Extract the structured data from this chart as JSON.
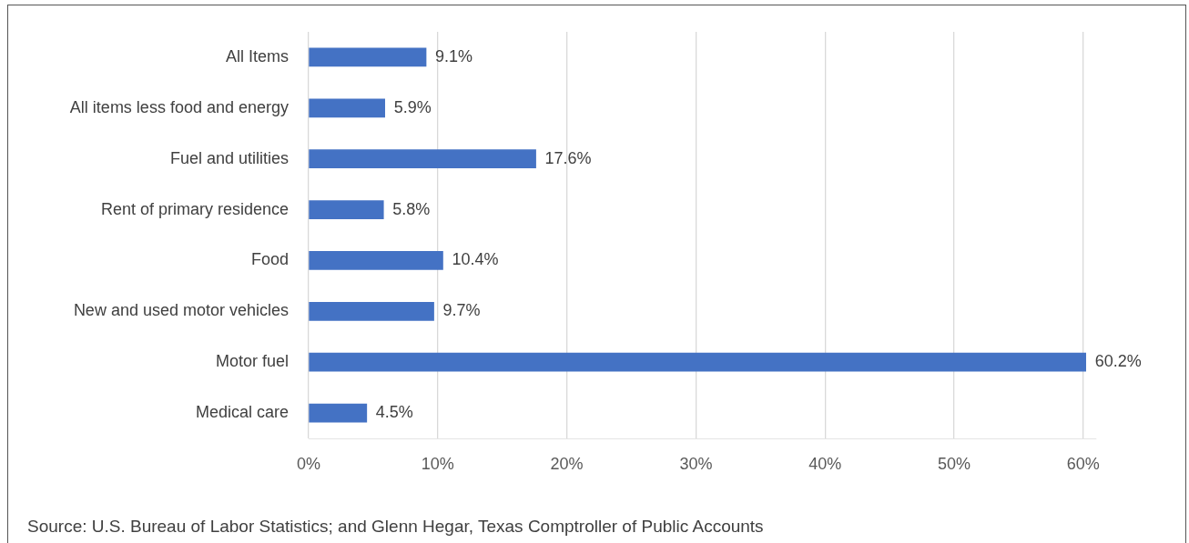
{
  "chart_data": {
    "type": "bar",
    "orientation": "horizontal",
    "categories": [
      "All Items",
      "All items less food and energy",
      "Fuel and utilities",
      "Rent of primary residence",
      "Food",
      "New and used motor vehicles",
      "Motor fuel",
      "Medical care"
    ],
    "values": [
      9.1,
      5.9,
      17.6,
      5.8,
      10.4,
      9.7,
      60.2,
      4.5
    ],
    "value_labels": [
      "9.1%",
      "5.9%",
      "17.6%",
      "5.8%",
      "10.4%",
      "9.7%",
      "60.2%",
      "4.5%"
    ],
    "color": "#4472c4",
    "xlim": [
      0,
      61
    ],
    "xticks": [
      {
        "value": 0,
        "label": "0%"
      },
      {
        "value": 10,
        "label": "10%"
      },
      {
        "value": 20,
        "label": "20%"
      },
      {
        "value": 30,
        "label": "30%"
      },
      {
        "value": 40,
        "label": "40%"
      },
      {
        "value": 50,
        "label": "50%"
      },
      {
        "value": 60,
        "label": "60%"
      }
    ],
    "grid": "x",
    "legend": false,
    "annotations": [
      "Source: U.S. Bureau of Labor Statistics; and Glenn Hegar, Texas Comptroller of Public Accounts"
    ]
  }
}
